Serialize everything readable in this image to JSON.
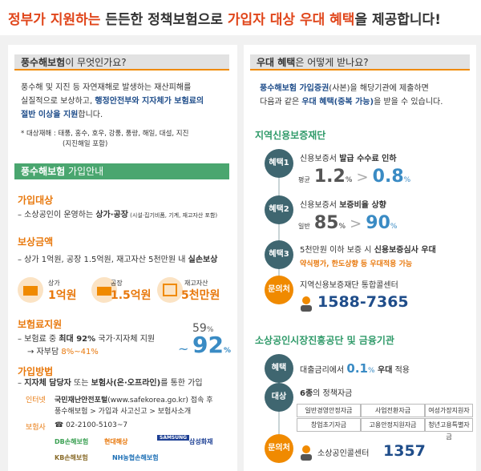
{
  "header": {
    "title": [
      "정부가 지원하는",
      " 든든한 정책보험으로 ",
      "가입자 대상 우대 혜택",
      "을 제공합니다!"
    ]
  },
  "left": {
    "what": {
      "heading": [
        "풍수해보험",
        "이 무엇인가요?"
      ],
      "body": [
        [
          "풍수해 및 지진 등 자연재해로 발생하는 재산피해를"
        ],
        [
          "실질적으로 보상하고, ",
          "행정안전부와 지자체가 보험료의"
        ],
        [
          "절반 이상을 지원",
          "합니다."
        ]
      ],
      "note": [
        "* 대상재해 : 태풍, 홍수, 호우, 강풍, 풍랑, 해일, 대설, 지진",
        "(지진해일 포함)"
      ]
    },
    "guide": {
      "heading": [
        "풍수해보험",
        " 가입안내"
      ],
      "target": {
        "title": "가입대상",
        "text": [
          "– 소상공인이 운영하는 ",
          "상가·공장",
          " (시설·집기비품, 기계, 재고자산 포함)"
        ]
      },
      "coverage": {
        "title": "보상금액",
        "text": [
          "– 상가 1억원, 공장 1.5억원, 재고자산 5천만원 내 ",
          "실손보상"
        ],
        "items": [
          {
            "label": "상가",
            "amount": "1억원"
          },
          {
            "label": "공장",
            "amount": "1.5억원"
          },
          {
            "label": "재고자산",
            "amount": "5천만원"
          }
        ]
      },
      "subsidy": {
        "title": "보험료지원",
        "text": [
          "– 보험료 중 ",
          "최대 92%",
          " 국가·지자체 지원"
        ],
        "self": [
          "→ 자부담 ",
          "8%~41%"
        ],
        "range": {
          "from": "59",
          "from_unit": "%",
          "sep": "~",
          "to": "92",
          "to_unit": "%"
        }
      },
      "join": {
        "title": "가입방법",
        "text": [
          "– ",
          "지자체 담당자",
          " 또는 ",
          "보험사(온·오프라인)",
          "를 통한 가입"
        ],
        "internet": {
          "label": "인터넷",
          "lines": [
            [
              "국민재난안전포털",
              "(www.safekorea.go.kr) 접속 후"
            ],
            [
              "풍수해보험 > 가입과 사고신고 > 보험사소개"
            ]
          ]
        },
        "insurer": {
          "label": "보험사",
          "phone": "☎ 02-2100-5103~7",
          "logos": [
            "DB손해보험",
            "현대해상",
            "SAMSUNG",
            "삼성화재",
            "KB손해보험",
            "NH농협손해보험"
          ]
        }
      }
    }
  },
  "right": {
    "heading": [
      "우대 혜택",
      "은 어떻게 받나요?"
    ],
    "intro": [
      [
        "풍수해보험 가입증권",
        "(사본)을 해당기관에 제출하면"
      ],
      [
        "다음과 같은 ",
        "우대 혜택(중복 가능)",
        "을 받을 수 있습니다."
      ]
    ],
    "fund": {
      "title": "지역신용보증재단",
      "steps": [
        {
          "badge": "혜택1",
          "text": [
            "신용보증서 ",
            "발급 수수료 인하"
          ],
          "prefix": "평균",
          "from": "1.2",
          "from_unit": "%",
          "arrow": ">",
          "to": "0.8",
          "to_unit": "%"
        },
        {
          "badge": "혜택2",
          "text": [
            "신용보증서 ",
            "보증비율 상향"
          ],
          "prefix": "일반",
          "from": "85",
          "from_unit": "%",
          "arrow": ">",
          "to": "90",
          "to_unit": "%"
        },
        {
          "badge": "혜택3",
          "text": [
            "5천만원 이하 보증 시 ",
            "신용보증심사 우대"
          ],
          "sub": "약식평가, 한도상향 등 우대적용 가능"
        },
        {
          "badge": "문의처",
          "text": [
            "지역신용보증재단 통합콜센터"
          ],
          "phone": "1588-7365"
        }
      ]
    },
    "agency": {
      "title": "소상공인시장진흥공단 및 금융기관",
      "benefit": {
        "badge": "혜택",
        "text": [
          "대출금리에서 ",
          "0.1",
          "%",
          " 우대",
          " 적용"
        ]
      },
      "target": {
        "badge": "대상",
        "text": [
          "6종",
          "의 정책자금"
        ],
        "funds": [
          [
            "일반경영안정자금",
            "사업전환자금",
            "여성가장지원자금"
          ],
          [
            "창업초기자금",
            "고용안정지원자금",
            "청년고용특별자금"
          ]
        ]
      },
      "contact": {
        "badge": "문의처",
        "text": "소상공인콜센터",
        "phone": "1357"
      }
    }
  }
}
